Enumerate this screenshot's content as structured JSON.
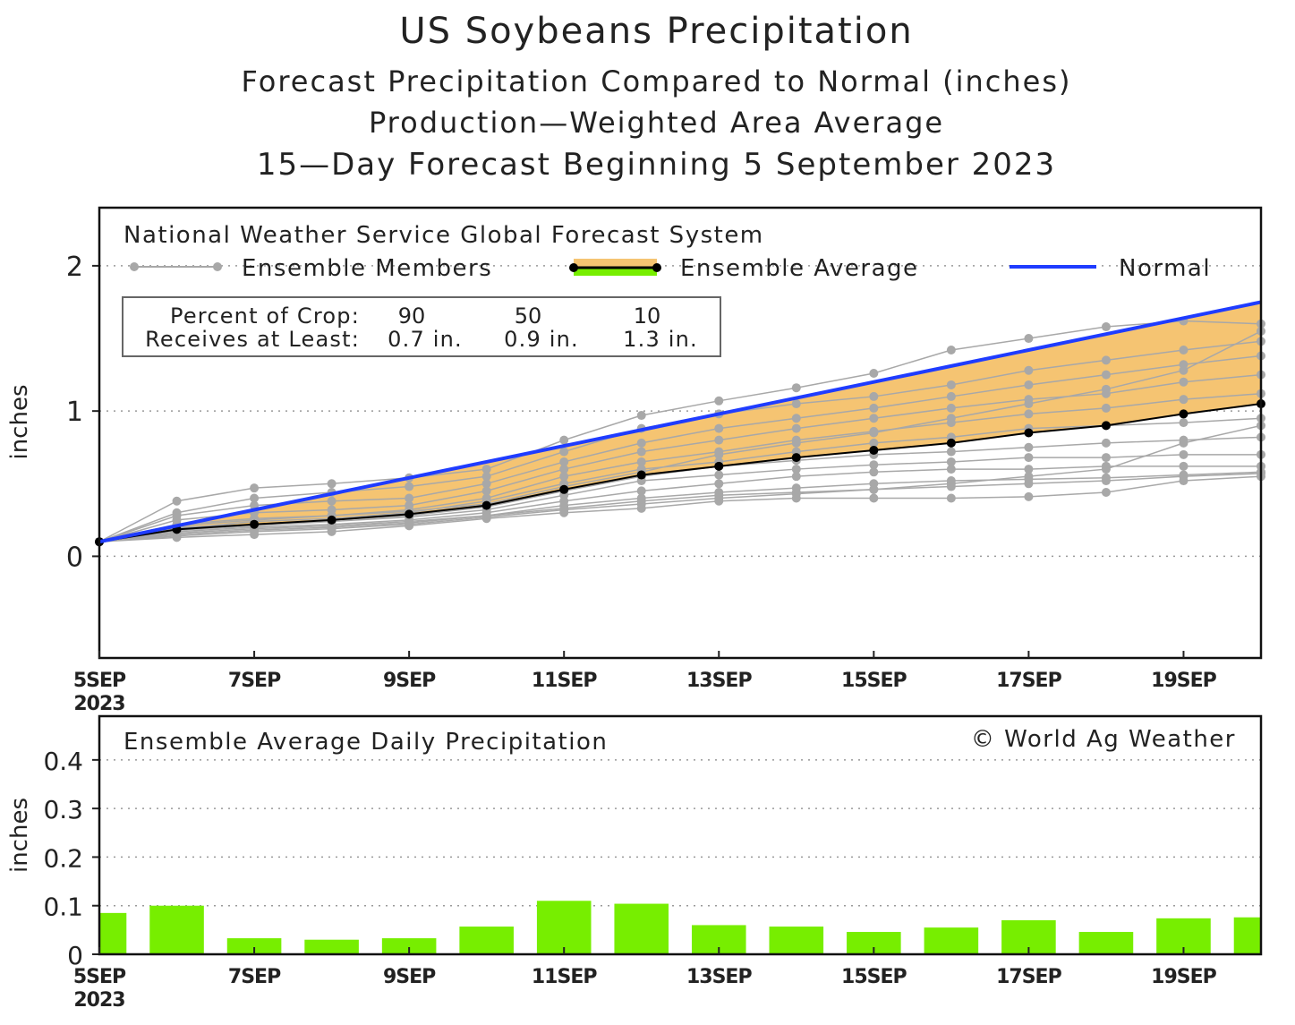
{
  "titles": {
    "main": "US Soybeans Precipitation",
    "sub1": "Forecast Precipitation Compared to Normal (inches)",
    "sub2": "Production—Weighted Area Average",
    "sub3": "15—Day Forecast Beginning 5 September 2023"
  },
  "colors": {
    "normal": "#1f3cff",
    "band": "#f5c472",
    "member": "#a8a8a8",
    "average": "#000000",
    "bar": "#77ee00"
  },
  "chart_data": [
    {
      "type": "line",
      "title": "National Weather Service Global Forecast System",
      "ylabel": "inches",
      "xlim": [
        5,
        20
      ],
      "ylim": [
        -0.7,
        2.4
      ],
      "yticks": [
        0,
        1,
        2
      ],
      "ytick_labels": [
        "0",
        "1",
        "2"
      ],
      "xticks": [
        5,
        7,
        9,
        11,
        13,
        15,
        17,
        19
      ],
      "xtick_labels": [
        "5SEP",
        "7SEP",
        "9SEP",
        "11SEP",
        "13SEP",
        "15SEP",
        "17SEP",
        "19SEP"
      ],
      "xtick_year": "2023",
      "grid": "dotted horizontal",
      "legend": {
        "members": "Ensemble Members",
        "average": "Ensemble Average",
        "normal": "Normal"
      },
      "crop_table": {
        "row1_label": "Percent of Crop:",
        "row2_label": "Receives at Least:",
        "columns": [
          {
            "percent": "90",
            "amount": "0.7 in."
          },
          {
            "percent": "50",
            "amount": "0.9 in."
          },
          {
            "percent": "10",
            "amount": "1.3 in."
          }
        ]
      },
      "x": [
        5,
        6,
        7,
        8,
        9,
        10,
        11,
        12,
        13,
        14,
        15,
        16,
        17,
        18,
        19,
        20
      ],
      "normal": [
        0.1,
        0.21,
        0.32,
        0.43,
        0.54,
        0.65,
        0.76,
        0.87,
        0.98,
        1.09,
        1.2,
        1.31,
        1.42,
        1.53,
        1.64,
        1.75
      ],
      "ensemble_average": [
        0.1,
        0.185,
        0.22,
        0.25,
        0.29,
        0.35,
        0.46,
        0.56,
        0.62,
        0.68,
        0.73,
        0.78,
        0.85,
        0.9,
        0.98,
        1.05
      ],
      "members": [
        [
          0.1,
          0.13,
          0.15,
          0.17,
          0.21,
          0.26,
          0.3,
          0.33,
          0.38,
          0.4,
          0.4,
          0.4,
          0.41,
          0.44,
          0.52,
          0.55
        ],
        [
          0.1,
          0.15,
          0.18,
          0.2,
          0.23,
          0.28,
          0.35,
          0.4,
          0.44,
          0.47,
          0.5,
          0.52,
          0.53,
          0.54,
          0.56,
          0.58
        ],
        [
          0.1,
          0.17,
          0.2,
          0.22,
          0.25,
          0.3,
          0.38,
          0.45,
          0.5,
          0.55,
          0.58,
          0.6,
          0.6,
          0.62,
          0.62,
          0.62
        ],
        [
          0.1,
          0.18,
          0.21,
          0.24,
          0.27,
          0.32,
          0.42,
          0.52,
          0.56,
          0.6,
          0.63,
          0.65,
          0.68,
          0.68,
          0.7,
          0.7
        ],
        [
          0.1,
          0.2,
          0.22,
          0.25,
          0.28,
          0.34,
          0.45,
          0.55,
          0.62,
          0.66,
          0.7,
          0.72,
          0.75,
          0.78,
          0.8,
          0.82
        ],
        [
          0.1,
          0.19,
          0.24,
          0.26,
          0.3,
          0.38,
          0.5,
          0.6,
          0.65,
          0.72,
          0.78,
          0.82,
          0.88,
          0.9,
          0.92,
          0.95
        ],
        [
          0.1,
          0.22,
          0.26,
          0.28,
          0.32,
          0.4,
          0.55,
          0.65,
          0.72,
          0.8,
          0.86,
          0.92,
          0.98,
          1.02,
          1.08,
          1.12
        ],
        [
          0.1,
          0.25,
          0.3,
          0.32,
          0.35,
          0.45,
          0.6,
          0.72,
          0.8,
          0.88,
          0.95,
          1.02,
          1.08,
          1.12,
          1.2,
          1.25
        ],
        [
          0.1,
          0.28,
          0.35,
          0.38,
          0.4,
          0.5,
          0.65,
          0.78,
          0.88,
          0.95,
          1.02,
          1.1,
          1.18,
          1.25,
          1.32,
          1.38
        ],
        [
          0.1,
          0.3,
          0.4,
          0.44,
          0.48,
          0.55,
          0.72,
          0.88,
          0.98,
          1.05,
          1.1,
          1.18,
          1.28,
          1.35,
          1.42,
          1.48
        ],
        [
          0.1,
          0.38,
          0.47,
          0.5,
          0.54,
          0.6,
          0.8,
          0.97,
          1.07,
          1.16,
          1.26,
          1.42,
          1.5,
          1.58,
          1.62,
          1.6
        ],
        [
          0.1,
          0.16,
          0.19,
          0.21,
          0.24,
          0.28,
          0.33,
          0.38,
          0.42,
          0.44,
          0.46,
          0.48,
          0.5,
          0.52,
          0.55,
          0.57
        ],
        [
          0.1,
          0.14,
          0.17,
          0.19,
          0.22,
          0.27,
          0.32,
          0.36,
          0.4,
          0.43,
          0.46,
          0.5,
          0.55,
          0.6,
          0.78,
          0.9
        ],
        [
          0.1,
          0.21,
          0.25,
          0.28,
          0.31,
          0.36,
          0.48,
          0.58,
          0.7,
          0.78,
          0.85,
          0.95,
          1.05,
          1.15,
          1.28,
          1.55
        ]
      ]
    },
    {
      "type": "bar",
      "title": "Ensemble Average Daily Precipitation",
      "credit": "© World Ag Weather",
      "ylabel": "inches",
      "xlim": [
        5,
        20
      ],
      "ylim": [
        0,
        0.49
      ],
      "yticks": [
        0,
        0.1,
        0.2,
        0.3,
        0.4
      ],
      "ytick_labels": [
        "0",
        "0.1",
        "0.2",
        "0.3",
        "0.4"
      ],
      "xticks": [
        5,
        7,
        9,
        11,
        13,
        15,
        17,
        19
      ],
      "xtick_labels": [
        "5SEP",
        "7SEP",
        "9SEP",
        "11SEP",
        "13SEP",
        "15SEP",
        "17SEP",
        "19SEP"
      ],
      "xtick_year": "2023",
      "grid": "dotted horizontal",
      "x": [
        5,
        6,
        7,
        8,
        9,
        10,
        11,
        12,
        13,
        14,
        15,
        16,
        17,
        18,
        19,
        20
      ],
      "values": [
        0.085,
        0.1,
        0.033,
        0.03,
        0.033,
        0.057,
        0.11,
        0.104,
        0.06,
        0.057,
        0.046,
        0.055,
        0.07,
        0.046,
        0.074,
        0.076
      ]
    }
  ]
}
